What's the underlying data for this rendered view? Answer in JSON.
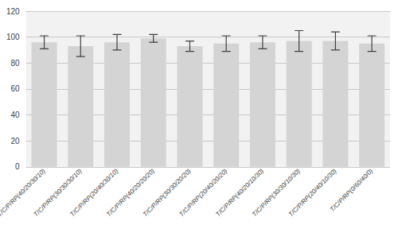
{
  "chart_data": {
    "type": "bar",
    "categories": [
      "T/C/P/RP(40/20/30/10)",
      "T/C/P/RP(30/30/30/10)",
      "T/C/P/RP(20/40/30/10)",
      "T/C/P/RP(40/20/20/20)",
      "T/C/P/RP(30/30/20/20)",
      "T/C/P/RP(20/40/20/20)",
      "T/C/P/RP(40/20/10/30)",
      "T/C/P/RP(30/30/10/30)",
      "T/C/P/RP(20/40/10/30)",
      "T/C/P/RP(0/60/40/0)"
    ],
    "values": [
      96,
      93,
      96,
      99,
      93,
      95,
      96,
      97,
      97,
      95
    ],
    "errors": [
      5,
      8,
      6,
      3,
      4,
      6,
      5,
      8,
      7,
      6
    ],
    "color": "#d4d4d4",
    "ylim": [
      0,
      120
    ],
    "yticks": [
      0,
      20,
      40,
      60,
      80,
      100,
      120
    ],
    "grid": true
  }
}
